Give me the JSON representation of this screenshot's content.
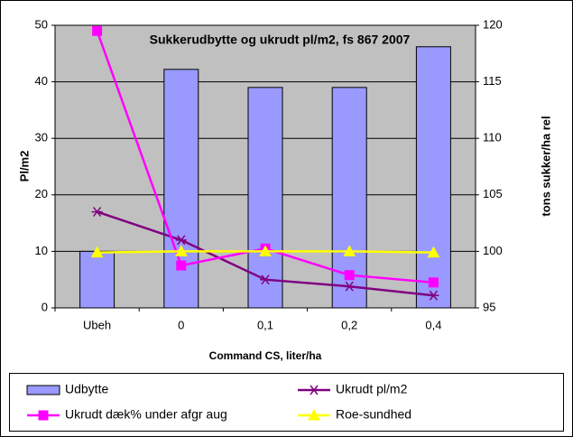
{
  "chart_data": {
    "type": "combo",
    "title": "Sukkerudbytte og ukrudt pl/m2, fs 867 2007",
    "xlabel": "Command CS, liter/ha",
    "ylabel": "Pl/m2",
    "y2label": "tons sukker/ha rel",
    "categories": [
      "Ubeh",
      "0",
      "0,1",
      "0,2",
      "0,4"
    ],
    "ylim": [
      0,
      50
    ],
    "yticks": [
      0,
      10,
      20,
      30,
      40,
      50
    ],
    "y2lim": [
      95,
      120
    ],
    "y2ticks": [
      95,
      100,
      105,
      110,
      115,
      120
    ],
    "series": [
      {
        "name": "Udbytte",
        "kind": "bar",
        "axis": "y2",
        "color": "#9999ff",
        "values": [
          100,
          116.1,
          114.5,
          114.5,
          118.1
        ]
      },
      {
        "name": "Ukrudt pl/m2",
        "kind": "line",
        "marker": "star",
        "color": "#800080",
        "values": [
          17,
          12,
          5,
          3.8,
          2.2
        ]
      },
      {
        "name": "Ukrudt dæk% under afgr aug",
        "kind": "line",
        "marker": "square",
        "color": "#ff00ff",
        "values": [
          49,
          7.5,
          10.5,
          5.8,
          4.5
        ]
      },
      {
        "name": "Roe-sundhed",
        "kind": "line",
        "marker": "triangle",
        "color": "#ffff00",
        "values": [
          9.8,
          10,
          10,
          10,
          9.8
        ]
      }
    ]
  }
}
